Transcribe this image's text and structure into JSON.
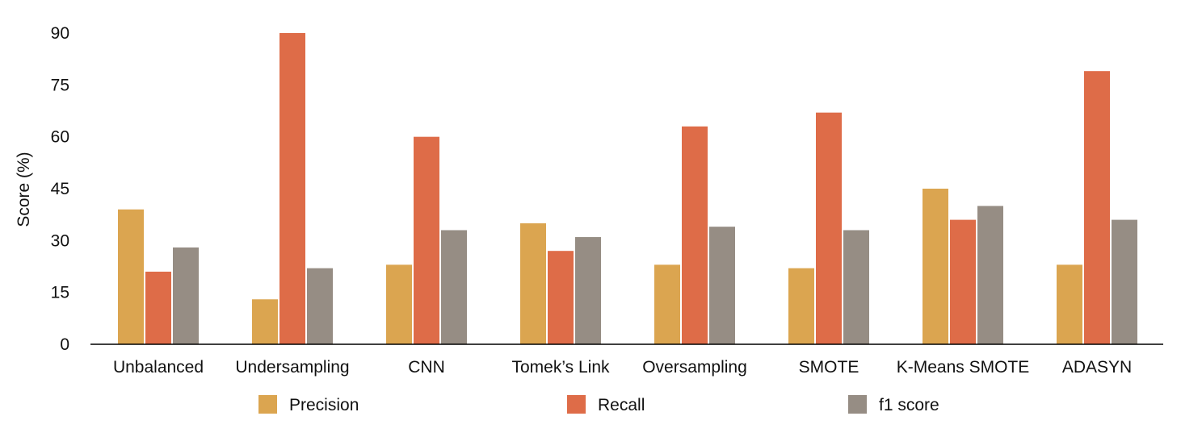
{
  "chart_data": {
    "type": "bar",
    "title": "",
    "xlabel": "",
    "ylabel": "Score (%)",
    "ylim": [
      0,
      90
    ],
    "yticks": [
      0,
      15,
      30,
      45,
      60,
      75,
      90
    ],
    "grid": false,
    "legend_position": "bottom",
    "categories": [
      "Unbalanced",
      "Undersampling",
      "CNN",
      "Tomek’s Link",
      "Oversampling",
      "SMOTE",
      "K-Means SMOTE",
      "ADASYN"
    ],
    "series": [
      {
        "name": "Precision",
        "color": "#DBA550",
        "values": [
          39,
          13,
          23,
          35,
          23,
          22,
          45,
          23
        ]
      },
      {
        "name": "Recall",
        "color": "#DE6C48",
        "values": [
          21,
          90,
          60,
          27,
          63,
          67,
          36,
          79
        ]
      },
      {
        "name": "f1 score",
        "color": "#968D84",
        "values": [
          28,
          22,
          33,
          31,
          34,
          33,
          40,
          36
        ]
      }
    ]
  }
}
